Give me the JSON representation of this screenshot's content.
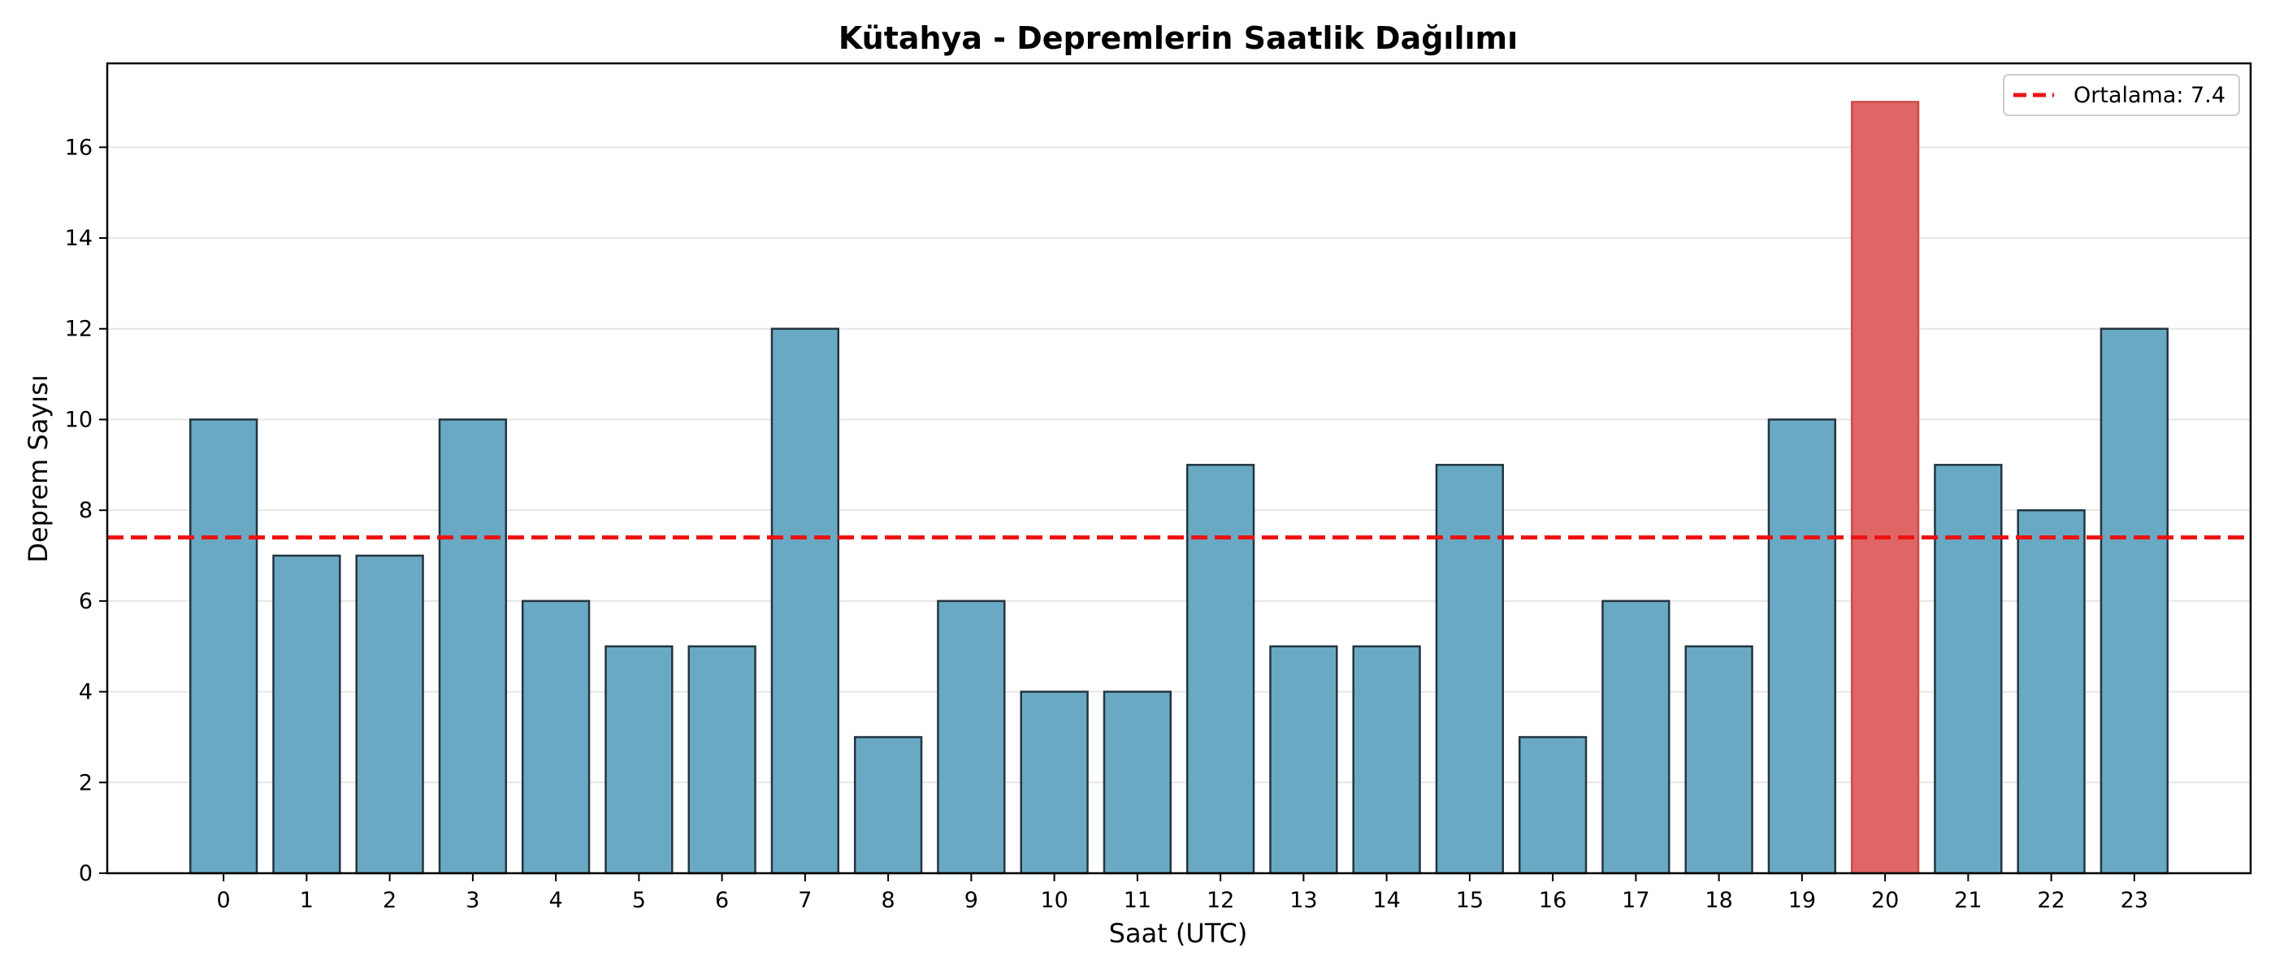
{
  "chart_data": {
    "type": "bar",
    "title": "Kütahya - Depremlerin Saatlik Dağılımı",
    "xlabel": "Saat (UTC)",
    "ylabel": "Deprem Sayısı",
    "categories": [
      "0",
      "1",
      "2",
      "3",
      "4",
      "5",
      "6",
      "7",
      "8",
      "9",
      "10",
      "11",
      "12",
      "13",
      "14",
      "15",
      "16",
      "17",
      "18",
      "19",
      "20",
      "21",
      "22",
      "23"
    ],
    "values": [
      10,
      7,
      7,
      10,
      6,
      5,
      5,
      12,
      3,
      6,
      4,
      4,
      9,
      5,
      5,
      9,
      3,
      6,
      5,
      10,
      17,
      9,
      8,
      12
    ],
    "highlight_index": 20,
    "ylim": [
      0,
      17.85
    ],
    "yticks": [
      0,
      2,
      4,
      6,
      8,
      10,
      12,
      14,
      16
    ],
    "grid": "horizontal",
    "legend_position": "top-right",
    "reference_line": {
      "value": 7.4,
      "label": "Ortalama: 7.4",
      "color": "#ee1111",
      "style": "dashed"
    },
    "colors": {
      "bar": "#6aa9c4",
      "highlight": "#e06666",
      "edge": "#233540",
      "grid": "#e6e6e6"
    }
  }
}
